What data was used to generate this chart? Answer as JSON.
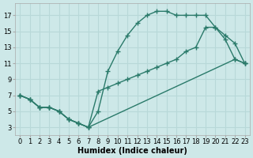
{
  "background_color": "#cde8e8",
  "grid_color": "#b8d8d8",
  "line_color": "#2a7a6a",
  "marker": "+",
  "markersize": 4,
  "linewidth": 1.0,
  "xlabel": "Humidex (Indice chaleur)",
  "xlabel_fontsize": 7,
  "tick_fontsize": 6,
  "xlim": [
    -0.5,
    23.5
  ],
  "ylim": [
    2.0,
    18.5
  ],
  "xticks": [
    0,
    1,
    2,
    3,
    4,
    5,
    6,
    7,
    8,
    9,
    10,
    11,
    12,
    13,
    14,
    15,
    16,
    17,
    18,
    19,
    20,
    21,
    22,
    23
  ],
  "yticks": [
    3,
    5,
    7,
    9,
    11,
    13,
    15,
    17
  ],
  "curve1_x": [
    0,
    1,
    2,
    3,
    4,
    5,
    6,
    7,
    8,
    9,
    10,
    11,
    12,
    13,
    14,
    15,
    16,
    17,
    18,
    19,
    20,
    21,
    22,
    23
  ],
  "curve1_y": [
    7.0,
    6.5,
    5.5,
    5.5,
    5.0,
    4.0,
    3.5,
    3.0,
    5.0,
    10.0,
    12.5,
    14.5,
    16.0,
    17.0,
    17.5,
    17.5,
    17.0,
    17.0,
    17.0,
    17.0,
    15.5,
    14.0,
    11.5,
    11.0
  ],
  "curve2_x": [
    0,
    1,
    2,
    3,
    4,
    5,
    6,
    7,
    22,
    23
  ],
  "curve2_y": [
    7.0,
    6.5,
    5.5,
    5.5,
    5.0,
    4.0,
    3.5,
    3.0,
    11.5,
    11.0
  ],
  "curve3_x": [
    0,
    1,
    2,
    3,
    4,
    5,
    6,
    7,
    8,
    9,
    10,
    11,
    12,
    13,
    14,
    15,
    16,
    17,
    18,
    19,
    20,
    21,
    22,
    23
  ],
  "curve3_y": [
    7.0,
    6.5,
    5.5,
    5.5,
    5.0,
    4.0,
    3.5,
    3.0,
    7.5,
    8.0,
    8.5,
    9.0,
    9.5,
    10.0,
    10.5,
    11.0,
    11.5,
    12.5,
    13.0,
    15.5,
    15.5,
    14.5,
    13.5,
    11.0
  ]
}
